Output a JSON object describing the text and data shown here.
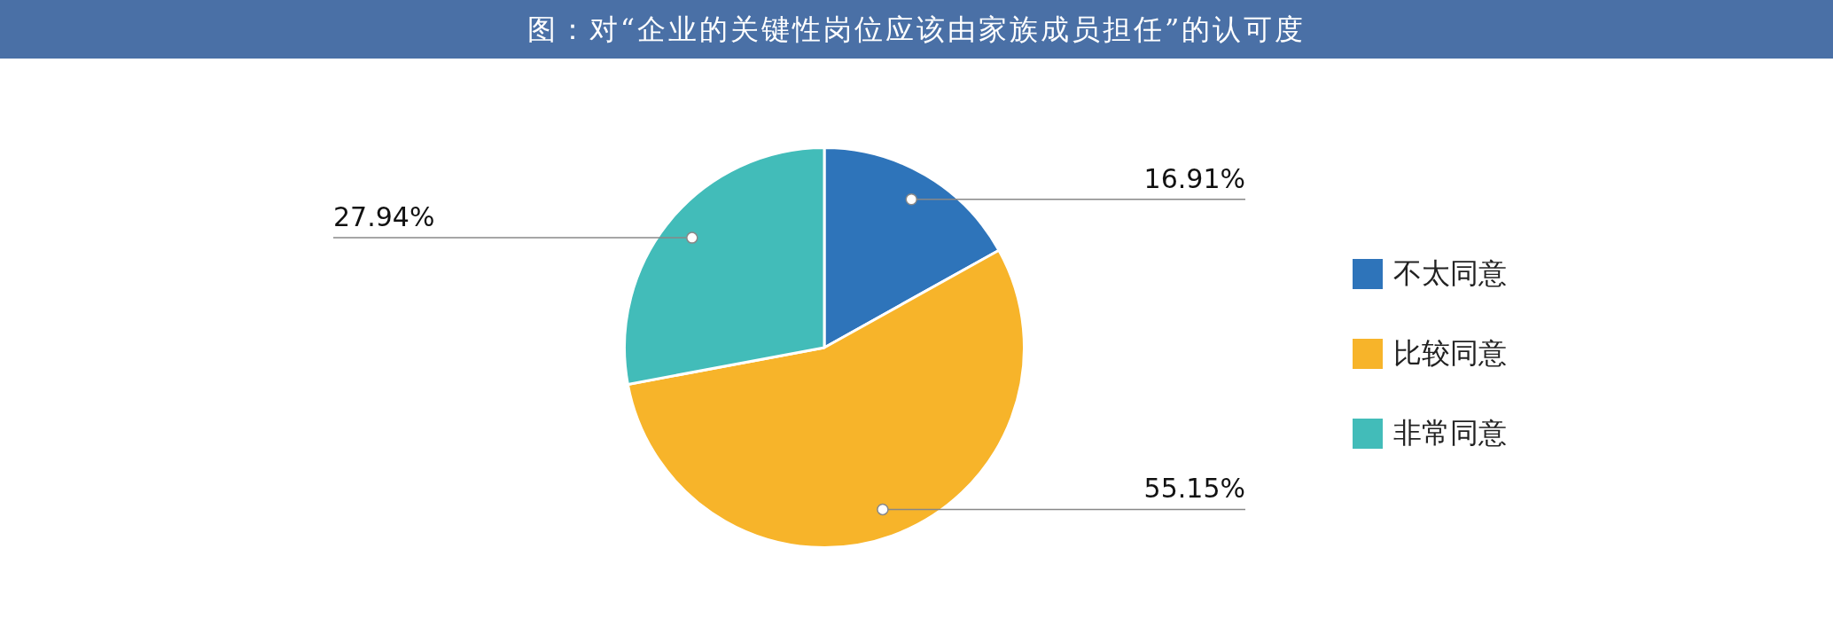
{
  "chart_data": {
    "type": "pie",
    "title": "图：对“企业的关键性岗位应该由家族成员担任”的认可度",
    "categories": [
      "不太同意",
      "比较同意",
      "非常同意"
    ],
    "values": [
      16.91,
      55.15,
      27.94
    ],
    "value_labels": [
      "16.91%",
      "55.15%",
      "27.94%"
    ],
    "colors": [
      "#2e74ba",
      "#f7b42a",
      "#42bcb9"
    ],
    "legend": "right"
  }
}
